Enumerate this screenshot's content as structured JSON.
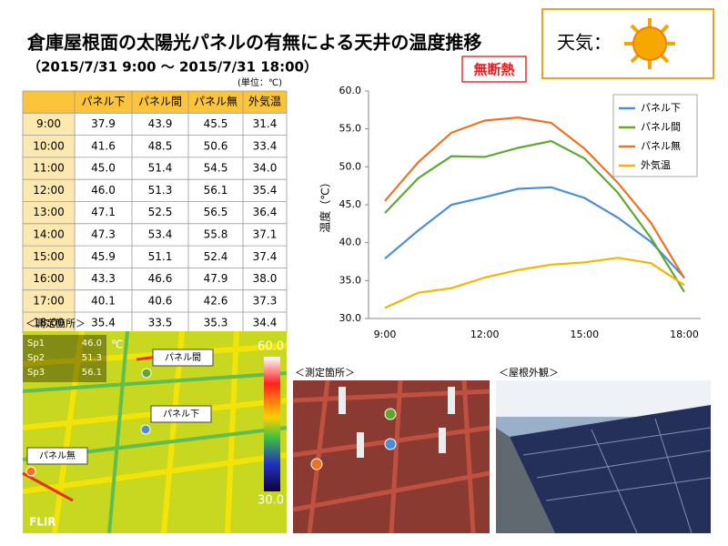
{
  "title": "倉庫屋根面の太陽光パネルの有無による天井の温度推移",
  "subtitle": "（2015/7/31 9:00 ～ 2015/7/31 18:00）",
  "badge": "無断熱",
  "weather": "天気：",
  "table": {
    "unit": "(単位：℃)",
    "header": [
      "パネル下",
      "パネル間",
      "パネル無",
      "外気温"
    ],
    "rows": [
      [
        "9:00",
        "37.9",
        "43.9",
        "45.5",
        "31.4"
      ],
      [
        "10:00",
        "41.6",
        "48.5",
        "50.6",
        "33.4"
      ],
      [
        "11:00",
        "45.0",
        "51.4",
        "54.5",
        "34.0"
      ],
      [
        "12:00",
        "46.0",
        "51.3",
        "56.1",
        "35.4"
      ],
      [
        "13:00",
        "47.1",
        "52.5",
        "56.5",
        "36.4"
      ],
      [
        "14:00",
        "47.3",
        "53.4",
        "55.8",
        "37.1"
      ],
      [
        "15:00",
        "45.9",
        "51.1",
        "52.4",
        "37.4"
      ],
      [
        "16:00",
        "43.3",
        "46.6",
        "47.9",
        "38.0"
      ],
      [
        "17:00",
        "40.1",
        "40.6",
        "42.6",
        "37.3"
      ],
      [
        "18:00",
        "35.4",
        "33.5",
        "35.3",
        "34.4"
      ]
    ]
  },
  "chart_data": {
    "type": "line",
    "ylabel": "温度（℃）",
    "categories": [
      "9:00",
      null,
      null,
      "12:00",
      null,
      null,
      "15:00",
      null,
      null,
      "18:00"
    ],
    "series": [
      {
        "name": "パネル下",
        "color": "#4a8fd4",
        "values": [
          37.9,
          41.6,
          45.0,
          46.0,
          47.1,
          47.3,
          45.9,
          43.3,
          40.1,
          35.4
        ]
      },
      {
        "name": "パネル間",
        "color": "#5ea832",
        "values": [
          43.9,
          48.5,
          51.4,
          51.3,
          52.5,
          53.4,
          51.1,
          46.6,
          40.6,
          33.5
        ]
      },
      {
        "name": "パネル無",
        "color": "#ee7222",
        "values": [
          45.5,
          50.6,
          54.5,
          56.1,
          56.5,
          55.8,
          52.4,
          47.9,
          42.6,
          35.3
        ]
      },
      {
        "name": "外気温",
        "color": "#f6b400",
        "values": [
          31.4,
          33.4,
          34.0,
          35.4,
          36.4,
          37.1,
          37.4,
          38.0,
          37.3,
          34.4
        ]
      }
    ],
    "ylim": [
      30,
      60
    ],
    "yticks": [
      {
        "value": 30,
        "label": "30.0"
      },
      {
        "value": 35,
        "label": "35.0"
      },
      {
        "value": 40,
        "label": "40.0"
      },
      {
        "value": 45,
        "label": "45.0"
      },
      {
        "value": 50,
        "label": "50.0"
      },
      {
        "value": 55,
        "label": "55.0"
      },
      {
        "value": 60,
        "label": "60.0"
      }
    ],
    "legend": "upper right"
  },
  "thermal": {
    "label": "＜測定箇所＞",
    "unit": "℃",
    "spots": [
      {
        "name": "Sp1",
        "value": "46.0"
      },
      {
        "name": "Sp2",
        "value": "51.3"
      },
      {
        "name": "Sp3",
        "value": "56.1"
      }
    ],
    "scale_max": "60.0",
    "scale_min": "30.0",
    "callouts": [
      "パネル間",
      "パネル下",
      "パネル無"
    ],
    "brand": "FLIR"
  },
  "photos": [
    "＜測定箇所＞",
    "＜屋根外観＞"
  ]
}
